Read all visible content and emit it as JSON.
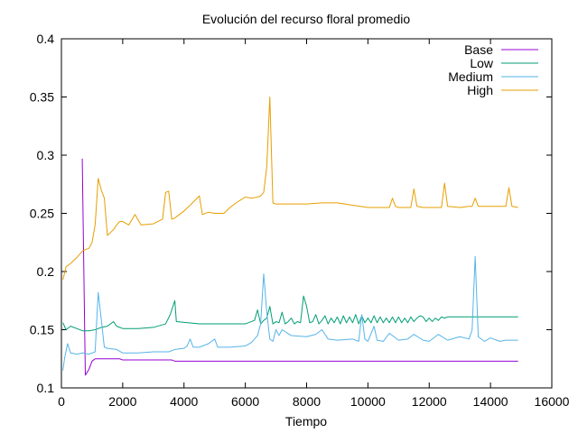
{
  "chart_data": {
    "type": "line",
    "title": "Evolución del recurso floral promedio",
    "xlabel": "Tiempo",
    "ylabel": "",
    "xlim": [
      0,
      16000
    ],
    "ylim": [
      0.1,
      0.4
    ],
    "xticks": [
      0,
      2000,
      4000,
      6000,
      8000,
      10000,
      12000,
      14000,
      16000
    ],
    "yticks": [
      0.1,
      0.15,
      0.2,
      0.25,
      0.3,
      0.35,
      0.4
    ],
    "xtick_labels": [
      "0",
      "2000",
      "4000",
      "6000",
      "8000",
      "10000",
      "12000",
      "14000",
      "16000"
    ],
    "ytick_labels": [
      "0.1",
      "0.15",
      "0.2",
      "0.25",
      "0.3",
      "0.35",
      "0.4"
    ],
    "grid": false,
    "legend_position": "top-right",
    "series": [
      {
        "name": "Base",
        "color": "#9400d3",
        "x": [
          680,
          780,
          900,
          1000,
          1100,
          1200,
          1500,
          1900,
          2000,
          3000,
          3600,
          3700,
          5000,
          7000,
          10000,
          13000,
          14900
        ],
        "y": [
          0.297,
          0.111,
          0.116,
          0.123,
          0.125,
          0.125,
          0.125,
          0.125,
          0.124,
          0.124,
          0.124,
          0.123,
          0.123,
          0.123,
          0.123,
          0.123,
          0.123
        ]
      },
      {
        "name": "Low",
        "color": "#009e73",
        "x": [
          50,
          150,
          300,
          500,
          700,
          900,
          1100,
          1300,
          1500,
          1700,
          1800,
          2000,
          2500,
          3000,
          3400,
          3550,
          3700,
          3750,
          4500,
          5500,
          6000,
          6200,
          6300,
          6400,
          6500,
          6600,
          6700,
          6800,
          6900,
          7000,
          7100,
          7200,
          7300,
          7400,
          7500,
          7600,
          7700,
          7800,
          7900,
          8000,
          8100,
          8200,
          8300,
          8400,
          8500,
          8600,
          8700,
          8800,
          8900,
          9000,
          9100,
          9200,
          9300,
          9400,
          9500,
          9600,
          9700,
          9800,
          9900,
          10000,
          10100,
          10200,
          10300,
          10400,
          10500,
          10600,
          10700,
          10800,
          10900,
          11000,
          11100,
          11200,
          11300,
          11400,
          11500,
          11600,
          11700,
          11800,
          11900,
          12000,
          12100,
          12200,
          12300,
          12400,
          12500,
          12600,
          12700,
          13000,
          13500,
          14000,
          14500,
          14900
        ],
        "y": [
          0.156,
          0.15,
          0.153,
          0.151,
          0.149,
          0.149,
          0.15,
          0.152,
          0.153,
          0.157,
          0.153,
          0.151,
          0.151,
          0.152,
          0.155,
          0.163,
          0.175,
          0.157,
          0.155,
          0.155,
          0.155,
          0.157,
          0.158,
          0.167,
          0.155,
          0.158,
          0.16,
          0.17,
          0.155,
          0.157,
          0.156,
          0.165,
          0.155,
          0.157,
          0.16,
          0.155,
          0.157,
          0.156,
          0.179,
          0.17,
          0.156,
          0.157,
          0.163,
          0.155,
          0.158,
          0.162,
          0.155,
          0.16,
          0.156,
          0.161,
          0.155,
          0.162,
          0.156,
          0.161,
          0.156,
          0.163,
          0.155,
          0.162,
          0.156,
          0.16,
          0.156,
          0.162,
          0.156,
          0.161,
          0.156,
          0.16,
          0.156,
          0.161,
          0.156,
          0.161,
          0.156,
          0.16,
          0.156,
          0.161,
          0.157,
          0.16,
          0.162,
          0.161,
          0.157,
          0.16,
          0.157,
          0.16,
          0.158,
          0.161,
          0.16,
          0.161,
          0.161,
          0.161,
          0.161,
          0.161,
          0.161,
          0.161
        ]
      },
      {
        "name": "Medium",
        "color": "#56b4e9",
        "x": [
          50,
          100,
          200,
          300,
          500,
          700,
          900,
          1100,
          1200,
          1300,
          1400,
          1500,
          1800,
          2000,
          2500,
          3000,
          3500,
          3700,
          4000,
          4100,
          4200,
          4300,
          4500,
          4800,
          5000,
          5100,
          5500,
          6000,
          6200,
          6400,
          6500,
          6600,
          6700,
          6800,
          6900,
          7000,
          7100,
          7200,
          7500,
          8000,
          8300,
          8500,
          8700,
          9000,
          9500,
          9700,
          9800,
          9900,
          10000,
          10200,
          10300,
          10500,
          10700,
          11000,
          11300,
          11500,
          11800,
          12000,
          12300,
          12600,
          13000,
          13300,
          13400,
          13500,
          13600,
          13800,
          14000,
          14300,
          14500,
          14900
        ],
        "y": [
          0.115,
          0.125,
          0.138,
          0.13,
          0.129,
          0.13,
          0.129,
          0.131,
          0.182,
          0.159,
          0.135,
          0.134,
          0.133,
          0.13,
          0.13,
          0.131,
          0.131,
          0.133,
          0.134,
          0.136,
          0.142,
          0.135,
          0.135,
          0.138,
          0.142,
          0.135,
          0.135,
          0.136,
          0.139,
          0.145,
          0.155,
          0.198,
          0.165,
          0.142,
          0.14,
          0.15,
          0.145,
          0.15,
          0.145,
          0.144,
          0.146,
          0.15,
          0.142,
          0.141,
          0.142,
          0.14,
          0.163,
          0.142,
          0.14,
          0.153,
          0.141,
          0.14,
          0.147,
          0.141,
          0.142,
          0.146,
          0.141,
          0.14,
          0.146,
          0.141,
          0.144,
          0.142,
          0.15,
          0.213,
          0.144,
          0.14,
          0.143,
          0.14,
          0.141,
          0.141
        ]
      },
      {
        "name": "High",
        "color": "#e69f00",
        "x": [
          50,
          150,
          300,
          500,
          700,
          900,
          1000,
          1100,
          1200,
          1300,
          1400,
          1500,
          1700,
          1800,
          1900,
          2000,
          2200,
          2400,
          2600,
          3000,
          3300,
          3400,
          3500,
          3600,
          3700,
          3800,
          4000,
          4200,
          4500,
          4600,
          4800,
          5000,
          5300,
          5500,
          5700,
          6000,
          6200,
          6400,
          6500,
          6600,
          6700,
          6800,
          6900,
          7000,
          7500,
          8000,
          8500,
          9000,
          9500,
          10000,
          10500,
          10700,
          10800,
          10900,
          11000,
          11300,
          11400,
          11500,
          11600,
          11800,
          12000,
          12400,
          12500,
          12600,
          13000,
          13300,
          13400,
          13500,
          13600,
          14000,
          14500,
          14600,
          14700,
          14900
        ],
        "y": [
          0.193,
          0.204,
          0.207,
          0.212,
          0.218,
          0.22,
          0.225,
          0.24,
          0.28,
          0.27,
          0.263,
          0.231,
          0.236,
          0.24,
          0.243,
          0.243,
          0.24,
          0.249,
          0.24,
          0.241,
          0.245,
          0.268,
          0.269,
          0.245,
          0.246,
          0.248,
          0.252,
          0.257,
          0.265,
          0.249,
          0.251,
          0.25,
          0.25,
          0.255,
          0.259,
          0.264,
          0.263,
          0.264,
          0.265,
          0.268,
          0.29,
          0.35,
          0.259,
          0.258,
          0.258,
          0.258,
          0.259,
          0.259,
          0.257,
          0.255,
          0.255,
          0.255,
          0.263,
          0.256,
          0.255,
          0.255,
          0.255,
          0.271,
          0.256,
          0.255,
          0.255,
          0.255,
          0.276,
          0.256,
          0.255,
          0.256,
          0.256,
          0.263,
          0.256,
          0.256,
          0.256,
          0.272,
          0.256,
          0.255
        ]
      }
    ]
  }
}
